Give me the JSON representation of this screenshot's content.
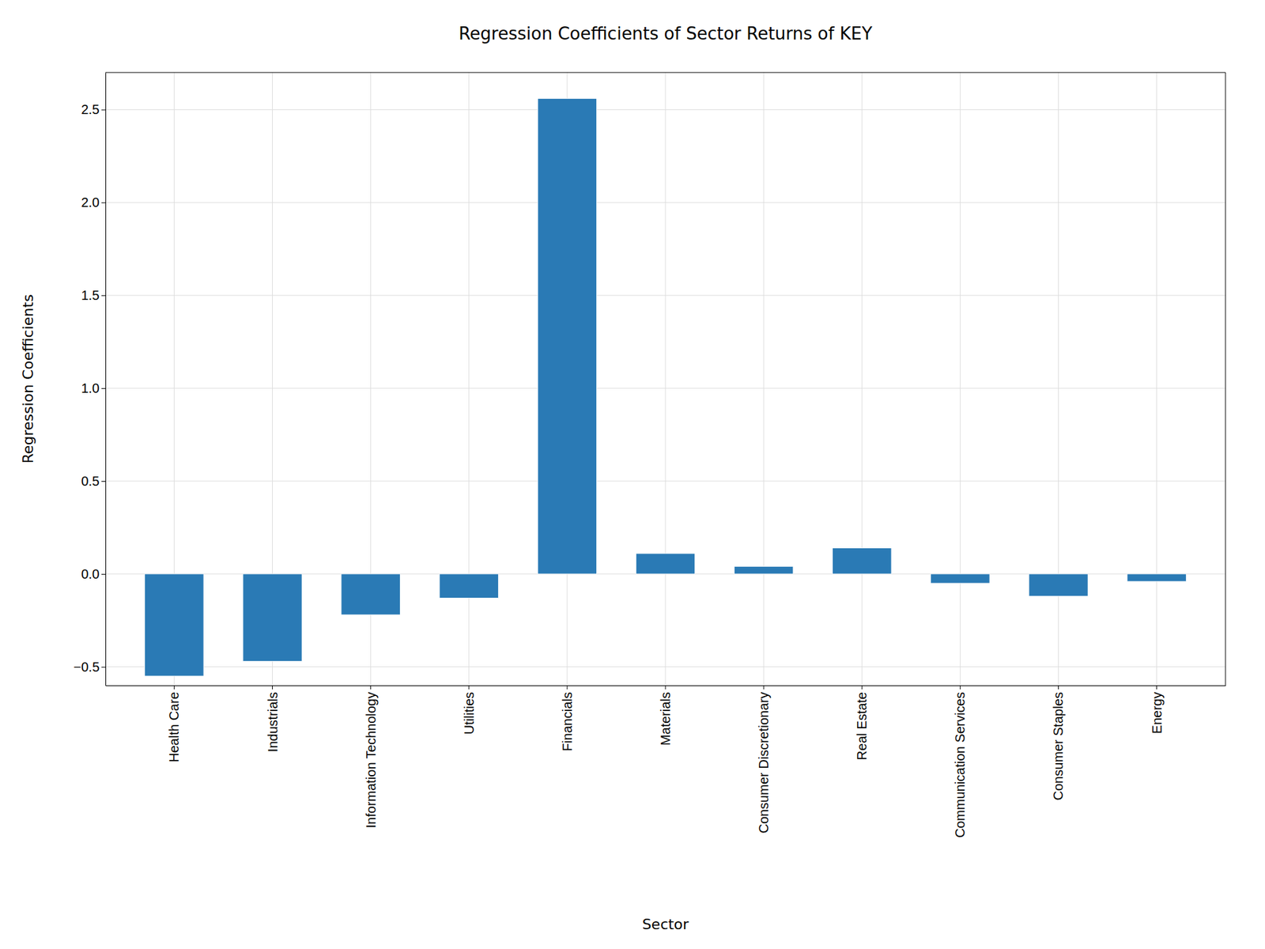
{
  "chart_data": {
    "type": "bar",
    "title": "Regression Coefficients of Sector Returns of KEY",
    "xlabel": "Sector",
    "ylabel": "Regression Coefficients",
    "categories": [
      "Health Care",
      "Industrials",
      "Information Technology",
      "Utilities",
      "Financials",
      "Materials",
      "Consumer Discretionary",
      "Real Estate",
      "Communication Services",
      "Consumer Staples",
      "Energy"
    ],
    "values": [
      -0.55,
      -0.47,
      -0.22,
      -0.13,
      2.56,
      0.11,
      0.04,
      0.14,
      -0.05,
      -0.12,
      -0.04
    ],
    "color": "#2a7ab5",
    "ylim": [
      -0.6,
      2.7
    ],
    "yticks": [
      {
        "value": -0.5,
        "label": "−0.5"
      },
      {
        "value": 0,
        "label": "0.0"
      },
      0.5,
      {
        "value": 1,
        "label": "1.0"
      },
      1.5,
      {
        "value": 2,
        "label": "2.0"
      },
      2.5
    ],
    "grid": true
  }
}
